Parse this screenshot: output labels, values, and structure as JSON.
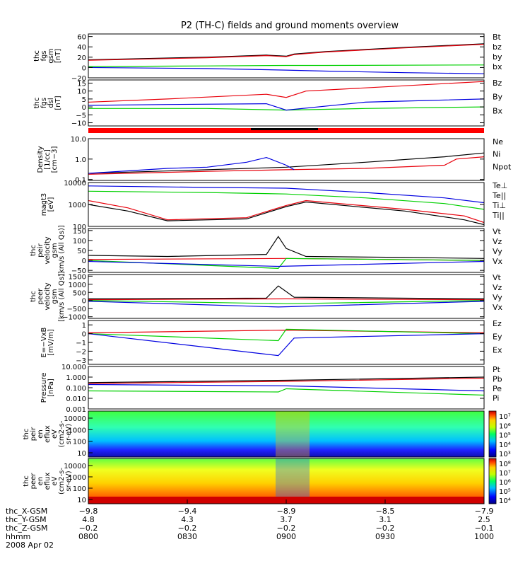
{
  "title": "P2 (TH-C) fields and ground moments overview",
  "colors": {
    "black": "#000000",
    "red": "#e8000b",
    "green": "#00d000",
    "blue": "#0000e0",
    "bar_red": "#ff0000"
  },
  "chart_data": [
    {
      "id": "fgs_gsm",
      "type": "line",
      "ylabel": [
        "thc",
        "fgs",
        "gsm",
        "[nT]"
      ],
      "yticks": [
        "60",
        "40",
        "20",
        "0",
        "−20"
      ],
      "ylim": [
        -20,
        65
      ],
      "legend": [
        {
          "name": "Bt",
          "color": "black"
        },
        {
          "name": "bz",
          "color": "red"
        },
        {
          "name": "by",
          "color": "green"
        },
        {
          "name": "bx",
          "color": "blue"
        }
      ],
      "series": [
        {
          "name": "Bt",
          "color": "black",
          "x": [
            0,
            0.3,
            0.45,
            0.5,
            0.52,
            0.6,
            0.8,
            1
          ],
          "y": [
            15,
            20,
            24,
            22,
            26,
            31,
            39,
            46
          ]
        },
        {
          "name": "bz",
          "color": "red",
          "x": [
            0,
            0.3,
            0.45,
            0.5,
            0.52,
            0.6,
            0.8,
            1
          ],
          "y": [
            14,
            19,
            23,
            21,
            25,
            30,
            38,
            45
          ]
        },
        {
          "name": "by",
          "color": "green",
          "x": [
            0,
            0.3,
            0.5,
            0.6,
            1
          ],
          "y": [
            2,
            3,
            4,
            4,
            5
          ]
        },
        {
          "name": "bx",
          "color": "blue",
          "x": [
            0,
            0.3,
            0.5,
            0.6,
            0.8,
            1
          ],
          "y": [
            0,
            -2,
            -5,
            -7,
            -10,
            -12
          ]
        }
      ]
    },
    {
      "id": "fgs_dsl",
      "type": "line",
      "ylabel": [
        "thc",
        "fgs",
        "dsl",
        "[nT]"
      ],
      "yticks": [
        "15",
        "10",
        "5",
        "0",
        "−5",
        "−10"
      ],
      "ylim": [
        -12,
        17
      ],
      "legend": [
        {
          "name": "Bz",
          "color": "red"
        },
        {
          "name": "By",
          "color": "green"
        },
        {
          "name": "Bx",
          "color": "blue"
        }
      ],
      "series": [
        {
          "name": "Bz",
          "color": "red",
          "x": [
            0,
            0.2,
            0.45,
            0.5,
            0.55,
            0.7,
            0.85,
            1
          ],
          "y": [
            3,
            5,
            8,
            6,
            10,
            12,
            14,
            16
          ]
        },
        {
          "name": "By",
          "color": "green",
          "x": [
            0,
            0.3,
            0.5,
            0.7,
            1
          ],
          "y": [
            -1,
            -1,
            -2,
            -1,
            0
          ]
        },
        {
          "name": "Bx",
          "color": "blue",
          "x": [
            0,
            0.2,
            0.45,
            0.5,
            0.7,
            0.85,
            1
          ],
          "y": [
            1,
            1.5,
            2,
            -2,
            3,
            4,
            5
          ]
        }
      ]
    },
    {
      "id": "density",
      "type": "line",
      "scale": "log",
      "ylabel": [
        "Density",
        "[1/cc]",
        "[cm−3]"
      ],
      "yticks": [
        "10.0",
        "1.0",
        "0.1"
      ],
      "ylim": [
        0.09,
        10
      ],
      "legend": [
        {
          "name": "Ne",
          "color": "red"
        },
        {
          "name": "Ni",
          "color": "black"
        },
        {
          "name": "Npot",
          "color": "blue"
        }
      ],
      "series": [
        {
          "name": "Ni",
          "color": "black",
          "x": [
            0,
            0.3,
            0.5,
            0.7,
            0.9,
            1
          ],
          "y": [
            0.2,
            0.3,
            0.4,
            0.7,
            1.3,
            2.0
          ]
        },
        {
          "name": "Ne",
          "color": "red",
          "x": [
            0,
            0.3,
            0.5,
            0.7,
            0.9,
            0.93,
            1
          ],
          "y": [
            0.18,
            0.25,
            0.3,
            0.35,
            0.5,
            1.0,
            1.3
          ]
        },
        {
          "name": "Npot",
          "color": "blue",
          "x": [
            0,
            0.2,
            0.3,
            0.4,
            0.45,
            0.5,
            0.52
          ],
          "y": [
            0.2,
            0.35,
            0.4,
            0.7,
            1.2,
            0.5,
            0.3
          ]
        }
      ]
    },
    {
      "id": "temperature",
      "type": "line",
      "scale": "log",
      "ylabel": [
        "magt3",
        "[eV]"
      ],
      "yticks": [
        "10000",
        "1000",
        "100"
      ],
      "ylim": [
        100,
        10000
      ],
      "legend": [
        {
          "name": "Te⊥",
          "color": "red"
        },
        {
          "name": "Te||",
          "color": "black"
        },
        {
          "name": "Ti⊥",
          "color": "blue"
        },
        {
          "name": "Ti||",
          "color": "green"
        }
      ],
      "series": [
        {
          "name": "Ti⊥",
          "color": "blue",
          "x": [
            0,
            0.3,
            0.5,
            0.7,
            0.9,
            1
          ],
          "y": [
            7000,
            6000,
            5500,
            3500,
            2000,
            1200
          ]
        },
        {
          "name": "Ti||",
          "color": "green",
          "x": [
            0,
            0.3,
            0.5,
            0.7,
            0.9,
            1
          ],
          "y": [
            4000,
            3500,
            3000,
            2000,
            1100,
            600
          ]
        },
        {
          "name": "Te⊥",
          "color": "red",
          "x": [
            0,
            0.1,
            0.2,
            0.4,
            0.5,
            0.55,
            0.8,
            0.95,
            1
          ],
          "y": [
            1500,
            700,
            200,
            250,
            900,
            1500,
            600,
            300,
            150
          ]
        },
        {
          "name": "Te||",
          "color": "black",
          "x": [
            0,
            0.1,
            0.2,
            0.4,
            0.5,
            0.55,
            0.8,
            0.95,
            1
          ],
          "y": [
            1000,
            500,
            180,
            220,
            800,
            1300,
            500,
            200,
            120
          ]
        }
      ]
    },
    {
      "id": "peir_velocity",
      "type": "line",
      "ylabel": [
        "thc",
        "peir",
        "velocity",
        "gsm",
        "[km/s (All Qs)]"
      ],
      "yticks": [
        "150",
        "100",
        "50",
        "0",
        "−50"
      ],
      "ylim": [
        -60,
        160
      ],
      "legend": [
        {
          "name": "Vt",
          "color": "black"
        },
        {
          "name": "Vz",
          "color": "red"
        },
        {
          "name": "Vy",
          "color": "green"
        },
        {
          "name": "Vx",
          "color": "blue"
        }
      ],
      "series": [
        {
          "name": "Vt",
          "color": "black",
          "x": [
            0,
            0.2,
            0.45,
            0.48,
            0.5,
            0.55,
            0.8,
            1
          ],
          "y": [
            25,
            20,
            30,
            120,
            60,
            20,
            15,
            10
          ]
        },
        {
          "name": "Vz",
          "color": "red",
          "x": [
            0,
            0.5,
            1
          ],
          "y": [
            5,
            10,
            0
          ]
        },
        {
          "name": "Vy",
          "color": "green",
          "x": [
            0,
            0.48,
            0.5,
            1
          ],
          "y": [
            0,
            -40,
            10,
            0
          ]
        },
        {
          "name": "Vx",
          "color": "blue",
          "x": [
            0,
            0.48,
            1
          ],
          "y": [
            -5,
            -30,
            -5
          ]
        }
      ]
    },
    {
      "id": "peer_velocity",
      "type": "line",
      "ylabel": [
        "thc",
        "peer",
        "velocity",
        "gsm",
        "[km/s (All Qs)]"
      ],
      "yticks": [
        "1500",
        "1000",
        "500",
        "0",
        "−500",
        "−1000"
      ],
      "ylim": [
        -1100,
        1600
      ],
      "legend": [
        {
          "name": "Vt",
          "color": "black"
        },
        {
          "name": "Vz",
          "color": "red"
        },
        {
          "name": "Vy",
          "color": "green"
        },
        {
          "name": "Vx",
          "color": "blue"
        }
      ],
      "series": [
        {
          "name": "Vt",
          "color": "black",
          "x": [
            0,
            0.45,
            0.48,
            0.52,
            1
          ],
          "y": [
            100,
            150,
            900,
            200,
            100
          ]
        },
        {
          "name": "Vz",
          "color": "red",
          "x": [
            0,
            0.5,
            1
          ],
          "y": [
            50,
            100,
            50
          ]
        },
        {
          "name": "Vy",
          "color": "green",
          "x": [
            0,
            0.5,
            1
          ],
          "y": [
            0,
            -200,
            0
          ]
        },
        {
          "name": "Vx",
          "color": "blue",
          "x": [
            0,
            0.48,
            1
          ],
          "y": [
            -50,
            -400,
            -50
          ]
        }
      ]
    },
    {
      "id": "efield",
      "type": "line",
      "ylabel": [
        "E=−VxB",
        "[mV/m]"
      ],
      "yticks": [
        "1",
        "0",
        "−1",
        "−2",
        "−3"
      ],
      "ylim": [
        -3.5,
        1.5
      ],
      "legend": [
        {
          "name": "Ez",
          "color": "red"
        },
        {
          "name": "Ey",
          "color": "green"
        },
        {
          "name": "Ex",
          "color": "blue"
        }
      ],
      "series": [
        {
          "name": "Ez",
          "color": "red",
          "x": [
            0,
            0.5,
            1
          ],
          "y": [
            0.1,
            0.4,
            0.1
          ]
        },
        {
          "name": "Ey",
          "color": "green",
          "x": [
            0,
            0.48,
            0.5,
            1
          ],
          "y": [
            0,
            -0.8,
            0.5,
            0
          ]
        },
        {
          "name": "Ex",
          "color": "blue",
          "x": [
            0,
            0.48,
            0.52,
            1
          ],
          "y": [
            0,
            -2.5,
            -0.5,
            0
          ]
        }
      ]
    },
    {
      "id": "pressure",
      "type": "line",
      "scale": "log",
      "ylabel": [
        "Pressure",
        "[nPa]"
      ],
      "yticks": [
        "10.000",
        "1.000",
        "0.100",
        "0.010",
        "0.001"
      ],
      "ylim": [
        0.001,
        10
      ],
      "legend": [
        {
          "name": "Pt",
          "color": "black"
        },
        {
          "name": "Pb",
          "color": "red"
        },
        {
          "name": "Pe",
          "color": "green"
        },
        {
          "name": "Pi",
          "color": "blue"
        }
      ],
      "series": [
        {
          "name": "Pt",
          "color": "black",
          "x": [
            0,
            0.5,
            1
          ],
          "y": [
            0.3,
            0.5,
            1.0
          ]
        },
        {
          "name": "Pb",
          "color": "red",
          "x": [
            0,
            0.5,
            1
          ],
          "y": [
            0.25,
            0.4,
            0.8
          ]
        },
        {
          "name": "Pi",
          "color": "blue",
          "x": [
            0,
            0.5,
            1
          ],
          "y": [
            0.2,
            0.15,
            0.05
          ]
        },
        {
          "name": "Pe",
          "color": "green",
          "x": [
            0,
            0.48,
            0.5,
            1
          ],
          "y": [
            0.05,
            0.04,
            0.08,
            0.02
          ]
        }
      ]
    },
    {
      "id": "peir_eflux",
      "type": "heatmap",
      "ylabel": [
        "thc",
        "peir",
        "en",
        "eflux",
        "eV",
        "(cm2-s-",
        "sr-eV)"
      ],
      "yticks": [
        "10000",
        "1000",
        "100",
        "10"
      ],
      "colorbar_ticks": [
        "10⁷",
        "10⁶",
        "10⁵",
        "10⁴",
        "10³"
      ]
    },
    {
      "id": "peer_eflux",
      "type": "heatmap",
      "ylabel": [
        "thc",
        "peer",
        "en",
        "eflux",
        "eV",
        "(cm2-s-",
        "sr-eV)"
      ],
      "yticks": [
        "10000",
        "1000",
        "100",
        "10"
      ],
      "colorbar_ticks": [
        "10⁸",
        "10⁷",
        "10⁶",
        "10⁵",
        "10⁴"
      ]
    }
  ],
  "xaxis": {
    "ticks": [
      {
        "frac": 0.0,
        "x_gsm": "−9.8",
        "y_gsm": "4.8",
        "z_gsm": "−0.2",
        "hhmm": "0800"
      },
      {
        "frac": 0.25,
        "x_gsm": "−9.4",
        "y_gsm": "4.3",
        "z_gsm": "−0.2",
        "hhmm": "0830"
      },
      {
        "frac": 0.5,
        "x_gsm": "−8.9",
        "y_gsm": "3.7",
        "z_gsm": "−0.2",
        "hhmm": "0900"
      },
      {
        "frac": 0.75,
        "x_gsm": "−8.5",
        "y_gsm": "3.1",
        "z_gsm": "−0.2",
        "hhmm": "0930"
      },
      {
        "frac": 1.0,
        "x_gsm": "−7.9",
        "y_gsm": "2.5",
        "z_gsm": "−0.1",
        "hhmm": "1000"
      }
    ],
    "row_labels": [
      "thc_X-GSM",
      "thc_Y-GSM",
      "thc_Z-GSM",
      "hhmm"
    ],
    "date": "2008 Apr 02"
  }
}
